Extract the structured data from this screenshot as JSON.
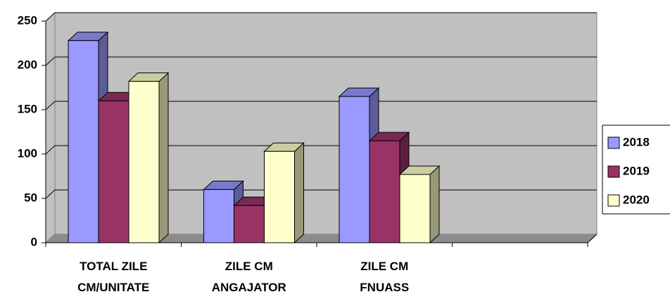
{
  "chart_data": {
    "type": "bar3d",
    "categories": [
      "TOTAL ZILE CM/UNITATE",
      "ZILE CM ANGAJATOR",
      "ZILE CM FNUASS",
      null
    ],
    "series": [
      {
        "name": "2018",
        "color": "#9999ff",
        "values": [
          228,
          60,
          165,
          null
        ]
      },
      {
        "name": "2019",
        "color": "#993366",
        "values": [
          160,
          42,
          115,
          null
        ]
      },
      {
        "name": "2020",
        "color": "#ffffcc",
        "values": [
          182,
          103,
          77,
          null
        ]
      }
    ],
    "ylim": [
      0,
      250
    ],
    "yticks": [
      0,
      50,
      100,
      150,
      200,
      250
    ],
    "grid": true,
    "legend": "right"
  }
}
